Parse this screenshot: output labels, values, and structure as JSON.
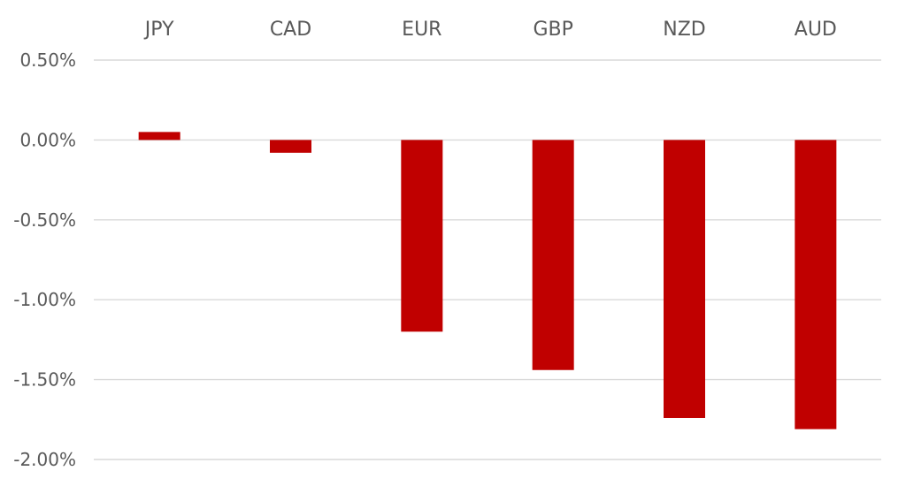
{
  "chart_data": {
    "type": "bar",
    "categories": [
      "JPY",
      "CAD",
      "EUR",
      "GBP",
      "NZD",
      "AUD"
    ],
    "series": [
      {
        "values": [
          0.05,
          -0.08,
          -1.2,
          -1.44,
          -1.74,
          -1.81
        ]
      }
    ],
    "y_ticks": [
      0.5,
      0.0,
      -0.5,
      -1.0,
      -1.5,
      -2.0
    ],
    "y_tick_labels": [
      "0.50%",
      "0.00%",
      "-0.50%",
      "-1.00%",
      "-1.50%",
      "-2.00%"
    ],
    "ylim": [
      -2.0,
      0.5
    ],
    "x_axis_position": "top",
    "grid": true,
    "legend": "none",
    "bar_color": "#c00000",
    "grid_color": "#d9d9d9",
    "label_color": "#595959"
  }
}
